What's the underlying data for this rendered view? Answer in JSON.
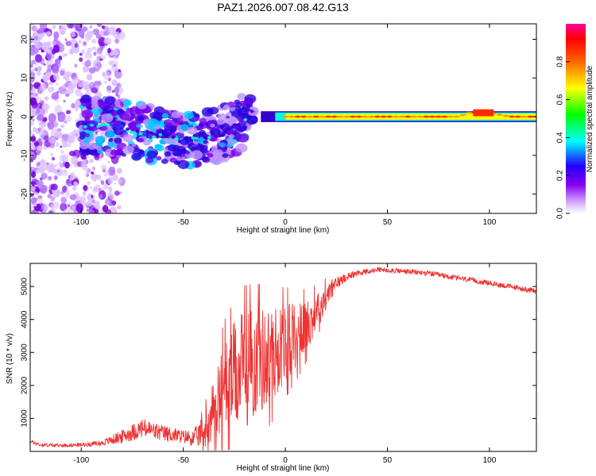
{
  "figure": {
    "title": "PAZ1.2026.007.08.42.G13"
  },
  "chart_data": [
    {
      "type": "heatmap",
      "title": "",
      "xlabel": "Height of straight line (km)",
      "ylabel": "Frequency (Hz)",
      "xlim": [
        -125,
        123
      ],
      "ylim": [
        -25,
        24
      ],
      "x_ticks": [
        -100,
        -50,
        0,
        50,
        100
      ],
      "y_ticks": [
        -20,
        -10,
        0,
        10,
        20
      ],
      "colorbar": {
        "label": "Normalized spectral amplitude",
        "range": [
          0,
          1
        ],
        "ticks": [
          0.0,
          0.2,
          0.4,
          0.6,
          0.8
        ],
        "tick_labels": [
          "0.0",
          "0.2",
          "0.4",
          "0.6",
          "0.8"
        ],
        "colormap": [
          "#ffffff",
          "#cc99ff",
          "#7700ee",
          "#2200ff",
          "#00ffff",
          "#00ff00",
          "#ffff00",
          "#ff6600",
          "#ff0000",
          "#ff0099"
        ]
      },
      "frequency_track": {
        "x": [
          -100,
          -90,
          -80,
          -70,
          -60,
          -50,
          -40,
          -35,
          -30,
          -25,
          -20,
          -18,
          -15,
          -10,
          -5,
          0,
          10,
          20,
          30,
          40,
          50,
          60,
          70,
          80,
          85,
          90,
          95,
          100,
          110,
          123
        ],
        "y": [
          -2,
          -2,
          -3,
          -4,
          -5,
          -6,
          -5,
          -5,
          -4,
          -3,
          -1,
          2,
          1,
          0,
          -0.5,
          0,
          0,
          0,
          0,
          0,
          0,
          0,
          0,
          0,
          0,
          1,
          1,
          1,
          0,
          0
        ]
      }
    },
    {
      "type": "line",
      "title": "",
      "xlabel": "Height of straight line (km)",
      "ylabel": "SNR (10 * v/v)",
      "xlim": [
        -125,
        123
      ],
      "ylim": [
        0,
        5700
      ],
      "x_ticks": [
        -100,
        -50,
        0,
        50,
        100
      ],
      "y_ticks": [
        1000,
        2000,
        3000,
        4000,
        5000
      ],
      "series": [
        {
          "name": "SNR",
          "color": "#ee3333",
          "x": [
            -125,
            -120,
            -110,
            -100,
            -90,
            -80,
            -70,
            -60,
            -50,
            -45,
            -40,
            -35,
            -30,
            -25,
            -20,
            -15,
            -10,
            -5,
            0,
            5,
            10,
            15,
            20,
            25,
            30,
            35,
            40,
            45,
            50,
            60,
            70,
            80,
            90,
            100,
            110,
            123
          ],
          "y": [
            300,
            200,
            180,
            200,
            250,
            450,
            700,
            550,
            450,
            400,
            600,
            1300,
            2000,
            2300,
            2500,
            2700,
            2800,
            3000,
            3300,
            3500,
            3800,
            4200,
            4700,
            5100,
            5300,
            5400,
            5450,
            5500,
            5500,
            5450,
            5400,
            5300,
            5200,
            5100,
            5000,
            4850
          ],
          "noise": [
            60,
            60,
            50,
            60,
            80,
            200,
            300,
            250,
            200,
            250,
            500,
            900,
            1400,
            1600,
            1800,
            1700,
            1600,
            1400,
            1200,
            1000,
            800,
            600,
            400,
            200,
            120,
            100,
            80,
            80,
            80,
            80,
            80,
            80,
            80,
            80,
            80,
            80
          ]
        }
      ]
    }
  ]
}
